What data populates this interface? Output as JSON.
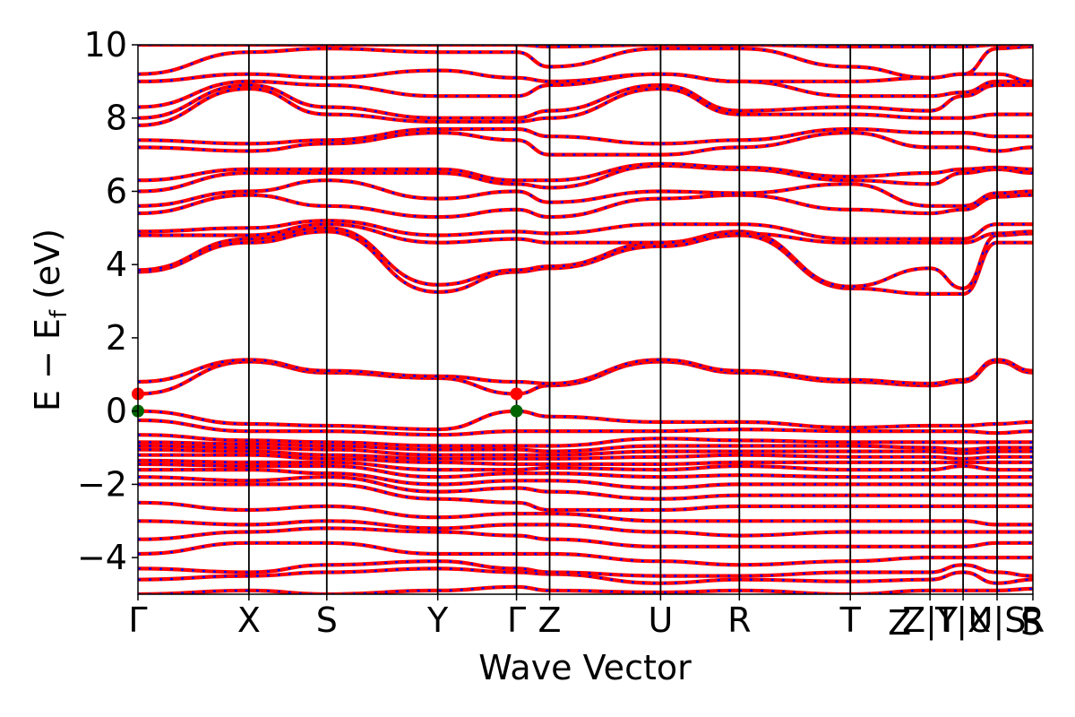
{
  "chart_data": {
    "type": "line",
    "title": "",
    "xlabel": "Wave Vector",
    "ylabel": "E − E_f (eV)",
    "ylabel_main": "E − E",
    "ylabel_sub": "f",
    "ylabel_unit": " (eV)",
    "ylim": [
      -5,
      10
    ],
    "yticks": [
      -4,
      -2,
      0,
      2,
      4,
      6,
      8,
      10
    ],
    "ytick_labels": [
      "−4",
      "−2",
      "0",
      "2",
      "4",
      "6",
      "8",
      "10"
    ],
    "kpath": [
      {
        "label": "Γ",
        "k": 0.0
      },
      {
        "label": "X",
        "k": 0.124
      },
      {
        "label": "S",
        "k": 0.211
      },
      {
        "label": "Y",
        "k": 0.335
      },
      {
        "label": "Γ",
        "k": 0.423
      },
      {
        "label": "Z",
        "k": 0.46
      },
      {
        "label": "U",
        "k": 0.584
      },
      {
        "label": "R",
        "k": 0.672
      },
      {
        "label": "T",
        "k": 0.796
      },
      {
        "label": "Z|Y",
        "k": 0.885
      },
      {
        "label": "T|X",
        "k": 0.922
      },
      {
        "label": "U|S",
        "k": 0.96
      },
      {
        "label": "R",
        "k": 1.0
      }
    ],
    "kpath_extra_labels": [
      {
        "label": "Z",
        "k": 0.851
      },
      {
        "label": "S",
        "k": 0.998
      }
    ],
    "series_colors": {
      "spin_up": "#ff0000",
      "spin_down": "#0000ff"
    },
    "marker_color_vbm": "#006400",
    "marker_color_cbm": "#ff0000",
    "vbm": [
      {
        "k": 0.0,
        "E": 0.0
      },
      {
        "k": 0.423,
        "E": 0.0
      }
    ],
    "cbm": [
      {
        "k": 0.0,
        "E": 0.47
      },
      {
        "k": 0.423,
        "E": 0.47
      }
    ],
    "bands": [
      [
        -5.0,
        -4.9,
        -5.0,
        -4.9,
        -4.8,
        -4.9,
        -4.95,
        -4.9,
        -5.0,
        -4.9,
        -4.9,
        -4.9,
        -4.85
      ],
      [
        -4.6,
        -4.5,
        -4.4,
        -4.3,
        -4.4,
        -4.45,
        -4.7,
        -4.6,
        -4.65,
        -4.6,
        -4.4,
        -4.7,
        -4.6
      ],
      [
        -4.3,
        -4.4,
        -4.2,
        -4.1,
        -4.3,
        -4.4,
        -4.5,
        -4.5,
        -4.4,
        -4.4,
        -4.2,
        -4.4,
        -4.5
      ],
      [
        -3.9,
        -3.6,
        -3.6,
        -3.9,
        -3.9,
        -3.9,
        -4.1,
        -4.2,
        -4.1,
        -4.0,
        -4.0,
        -4.0,
        -4.0
      ],
      [
        -3.5,
        -3.3,
        -3.2,
        -3.3,
        -3.4,
        -3.5,
        -3.7,
        -3.7,
        -3.7,
        -3.7,
        -3.7,
        -3.6,
        -3.6
      ],
      [
        -3.0,
        -3.1,
        -3.0,
        -3.2,
        -3.1,
        -3.1,
        -3.3,
        -3.4,
        -3.3,
        -3.3,
        -3.3,
        -3.3,
        -3.3
      ],
      [
        -2.5,
        -2.7,
        -2.6,
        -2.9,
        -2.8,
        -2.8,
        -3.0,
        -3.0,
        -3.0,
        -3.0,
        -3.0,
        -3.1,
        -3.1
      ],
      [
        -2.0,
        -2.0,
        -2.0,
        -2.4,
        -2.5,
        -2.7,
        -2.7,
        -2.6,
        -2.6,
        -2.6,
        -2.6,
        -2.6,
        -2.6
      ],
      [
        -1.8,
        -1.9,
        -1.8,
        -2.2,
        -2.1,
        -2.2,
        -2.4,
        -2.3,
        -2.3,
        -2.3,
        -2.3,
        -2.3,
        -2.3
      ],
      [
        -1.6,
        -1.6,
        -1.7,
        -2.0,
        -1.9,
        -1.9,
        -2.1,
        -2.0,
        -2.0,
        -2.0,
        -2.0,
        -2.0,
        -2.0
      ],
      [
        -1.45,
        -1.5,
        -1.5,
        -1.8,
        -1.7,
        -1.7,
        -1.8,
        -1.75,
        -1.8,
        -1.8,
        -1.8,
        -1.8,
        -1.8
      ],
      [
        -1.35,
        -1.4,
        -1.4,
        -1.6,
        -1.6,
        -1.55,
        -1.6,
        -1.5,
        -1.6,
        -1.6,
        -1.5,
        -1.6,
        -1.6
      ],
      [
        -1.2,
        -1.2,
        -1.3,
        -1.4,
        -1.45,
        -1.45,
        -1.45,
        -1.4,
        -1.4,
        -1.4,
        -1.4,
        -1.4,
        -1.4
      ],
      [
        -1.05,
        -1.1,
        -1.2,
        -1.3,
        -1.3,
        -1.3,
        -1.25,
        -1.2,
        -1.25,
        -1.25,
        -1.3,
        -1.25,
        -1.25
      ],
      [
        -0.95,
        -1.0,
        -1.05,
        -1.2,
        -1.2,
        -1.2,
        -1.1,
        -1.1,
        -1.1,
        -1.1,
        -1.15,
        -1.1,
        -1.1
      ],
      [
        -0.85,
        -0.9,
        -0.95,
        -1.05,
        -1.05,
        -1.1,
        -0.95,
        -0.95,
        -0.95,
        -1.0,
        -1.05,
        -1.0,
        -1.0
      ],
      [
        -0.65,
        -0.8,
        -0.85,
        -0.95,
        -0.95,
        -0.95,
        -0.75,
        -0.8,
        -0.85,
        -0.85,
        -0.85,
        -0.85,
        -0.85
      ],
      [
        -0.25,
        -0.55,
        -0.55,
        -0.65,
        -0.55,
        -0.55,
        -0.55,
        -0.5,
        -0.55,
        -0.55,
        -0.55,
        -0.6,
        -0.55
      ],
      [
        0.0,
        -0.35,
        -0.4,
        -0.5,
        0.0,
        -0.15,
        -0.3,
        -0.3,
        -0.45,
        -0.4,
        -0.4,
        -0.35,
        -0.3
      ],
      [
        0.47,
        1.35,
        1.05,
        0.9,
        0.47,
        0.7,
        1.35,
        1.05,
        0.8,
        0.7,
        0.8,
        1.35,
        1.05
      ],
      [
        0.8,
        1.4,
        1.1,
        0.95,
        0.8,
        0.75,
        1.4,
        1.1,
        0.85,
        0.75,
        0.85,
        1.4,
        1.1
      ],
      [
        3.8,
        4.6,
        4.9,
        3.25,
        3.8,
        3.9,
        4.5,
        4.8,
        3.35,
        3.2,
        3.2,
        4.6,
        4.6
      ],
      [
        3.85,
        4.7,
        5.0,
        3.45,
        3.85,
        3.95,
        4.6,
        4.9,
        3.4,
        3.9,
        3.35,
        4.8,
        4.85
      ],
      [
        4.8,
        4.8,
        5.1,
        4.6,
        4.7,
        4.6,
        4.6,
        4.85,
        4.6,
        4.6,
        4.6,
        4.85,
        4.9
      ],
      [
        4.9,
        5.0,
        5.2,
        4.8,
        4.9,
        4.85,
        5.1,
        5.1,
        4.7,
        4.7,
        4.7,
        5.1,
        5.1
      ],
      [
        5.4,
        5.9,
        5.6,
        5.3,
        5.5,
        5.3,
        5.8,
        5.9,
        5.5,
        5.4,
        5.5,
        5.85,
        5.9
      ],
      [
        5.6,
        6.0,
        6.3,
        5.8,
        6.0,
        5.7,
        6.0,
        5.95,
        6.2,
        5.6,
        5.6,
        5.95,
        6.0
      ],
      [
        6.0,
        6.5,
        6.5,
        6.5,
        6.2,
        6.1,
        6.7,
        6.6,
        6.3,
        6.2,
        6.5,
        6.6,
        6.5
      ],
      [
        6.3,
        6.6,
        6.6,
        6.6,
        6.3,
        6.3,
        6.75,
        6.65,
        6.4,
        6.5,
        6.6,
        6.65,
        6.6
      ],
      [
        7.2,
        7.1,
        7.3,
        7.6,
        7.4,
        7.0,
        7.0,
        7.2,
        7.6,
        7.2,
        7.2,
        7.1,
        7.2
      ],
      [
        7.4,
        7.3,
        7.4,
        7.7,
        7.7,
        7.5,
        7.3,
        7.4,
        7.7,
        7.6,
        7.6,
        7.5,
        7.5
      ],
      [
        7.8,
        8.8,
        8.1,
        7.9,
        7.9,
        8.0,
        8.8,
        8.1,
        8.1,
        8.0,
        8.0,
        8.1,
        8.1
      ],
      [
        8.0,
        8.9,
        8.3,
        8.0,
        8.0,
        8.2,
        8.9,
        8.2,
        8.3,
        8.2,
        8.6,
        8.9,
        8.9
      ],
      [
        8.3,
        9.0,
        8.9,
        8.6,
        8.6,
        8.9,
        9.2,
        9.0,
        8.6,
        8.6,
        8.7,
        9.0,
        9.0
      ],
      [
        9.0,
        9.2,
        9.1,
        9.3,
        9.1,
        9.0,
        9.2,
        9.0,
        9.0,
        9.1,
        9.2,
        9.2,
        9.0
      ],
      [
        9.2,
        9.8,
        9.9,
        9.8,
        9.8,
        9.4,
        9.9,
        9.9,
        9.4,
        9.1,
        9.2,
        9.9,
        9.95
      ],
      [
        10.0,
        10.0,
        10.0,
        10.0,
        10.0,
        9.95,
        10.0,
        10.0,
        9.95,
        9.95,
        9.95,
        10.0,
        10.0
      ]
    ]
  }
}
